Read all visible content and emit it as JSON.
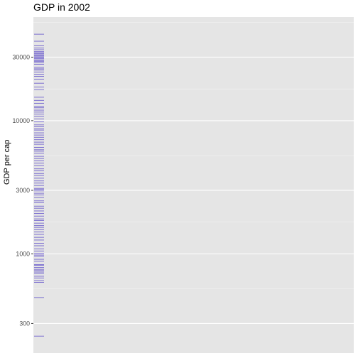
{
  "title": "GDP in 2002",
  "chart_data": {
    "type": "rug",
    "title": "GDP in 2002",
    "xlabel": "",
    "ylabel": "GDP per cap",
    "y_scale": "log10",
    "ylim": [
      180,
      60000
    ],
    "y_ticks": [
      300,
      1000,
      3000,
      10000,
      30000
    ],
    "y_tick_labels": [
      "300",
      "1000",
      "3000",
      "10000",
      "30000"
    ],
    "grid": true,
    "rug_color": "#6a5acd",
    "values": [
      241,
      470,
      611,
      630,
      659,
      679,
      712,
      730,
      750,
      765,
      790,
      821,
      830,
      880,
      910,
      960,
      980,
      1010,
      1050,
      1090,
      1150,
      1200,
      1270,
      1330,
      1400,
      1460,
      1520,
      1580,
      1630,
      1700,
      1780,
      1830,
      1920,
      2010,
      2100,
      2200,
      2280,
      2420,
      2500,
      2650,
      2770,
      2850,
      2970,
      3050,
      3100,
      3260,
      3400,
      3530,
      3700,
      3880,
      4010,
      4200,
      4350,
      4600,
      4800,
      5000,
      5200,
      5400,
      5700,
      5900,
      6050,
      6300,
      6650,
      6900,
      7200,
      7500,
      7800,
      8100,
      8500,
      8700,
      9000,
      9300,
      9800,
      10300,
      10800,
      11200,
      11600,
      12000,
      12500,
      12800,
      13500,
      14200,
      15000,
      17100,
      17900,
      19100,
      20500,
      21500,
      22300,
      23200,
      24000,
      24500,
      25200,
      26500,
      27200,
      27900,
      28400,
      28600,
      29300,
      29800,
      30200,
      30800,
      31200,
      31800,
      32300,
      33000,
      34100,
      35100,
      36500,
      39500,
      44600
    ]
  }
}
